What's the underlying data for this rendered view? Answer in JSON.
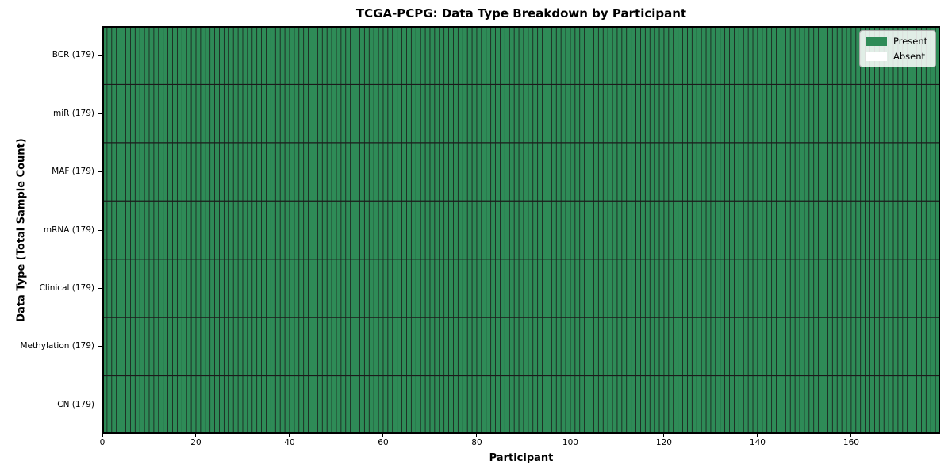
{
  "figure": {
    "title": "TCGA-PCPG: Data Type Breakdown by Participant"
  },
  "chart_data": {
    "type": "heatmap",
    "title": "TCGA-PCPG: Data Type Breakdown by Participant",
    "xlabel": "Participant",
    "ylabel": "Data Type (Total Sample Count)",
    "xlim": [
      0,
      179
    ],
    "x_ticks": [
      0,
      20,
      40,
      60,
      80,
      100,
      120,
      140,
      160
    ],
    "n_participants": 179,
    "rows": [
      {
        "label": "BCR (179)",
        "data_type": "BCR",
        "total_samples": 179,
        "present_count": 179,
        "absent_count": 0
      },
      {
        "label": "miR (179)",
        "data_type": "miR",
        "total_samples": 179,
        "present_count": 179,
        "absent_count": 0
      },
      {
        "label": "MAF (179)",
        "data_type": "MAF",
        "total_samples": 179,
        "present_count": 179,
        "absent_count": 0
      },
      {
        "label": "mRNA (179)",
        "data_type": "mRNA",
        "total_samples": 179,
        "present_count": 179,
        "absent_count": 0
      },
      {
        "label": "Clinical (179)",
        "data_type": "Clinical",
        "total_samples": 179,
        "present_count": 179,
        "absent_count": 0
      },
      {
        "label": "Methylation (179)",
        "data_type": "Methylation",
        "total_samples": 179,
        "present_count": 179,
        "absent_count": 0
      },
      {
        "label": "CN (179)",
        "data_type": "CN",
        "total_samples": 179,
        "present_count": 179,
        "absent_count": 0
      }
    ],
    "legend": {
      "position": "upper_right",
      "entries": [
        {
          "label": "Present",
          "color": "#2e8b57"
        },
        {
          "label": "Absent",
          "color": "#ffffff"
        }
      ]
    },
    "colors": {
      "present": "#2e8b57",
      "absent": "#ffffff",
      "grid_line": "#1b1b1b",
      "spine": "#000000"
    },
    "grid": true
  }
}
